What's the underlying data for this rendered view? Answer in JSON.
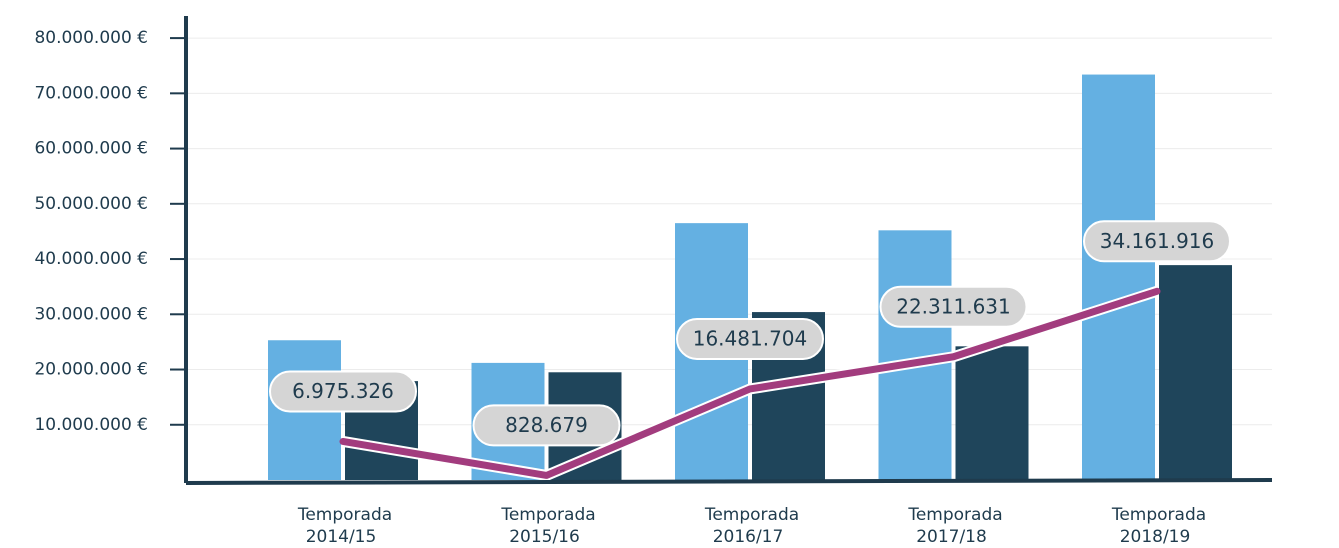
{
  "chart_data": {
    "type": "bar",
    "categories": [
      [
        "Temporada",
        "2014/15"
      ],
      [
        "Temporada",
        "2015/16"
      ],
      [
        "Temporada",
        "2016/17"
      ],
      [
        "Temporada",
        "2017/18"
      ],
      [
        "Temporada",
        "2018/19"
      ]
    ],
    "series": [
      {
        "color": "#64b0e2",
        "values": [
          25300000,
          21200000,
          46500000,
          45200000,
          73400000
        ]
      },
      {
        "color": "#1f455b",
        "values": [
          17900000,
          19500000,
          30400000,
          24200000,
          38900000
        ]
      },
      {
        "type": "line",
        "color": "#a23c7e",
        "values": [
          6975326,
          828679,
          16481704,
          22311631,
          34161916
        ],
        "value_labels": [
          "6.975.326",
          "828.679",
          "16.481.704",
          "22.311.631",
          "34.161.916"
        ]
      }
    ],
    "ylim": [
      0,
      84000000
    ],
    "yticks": [
      {
        "value": 10000000,
        "label": "10.000.000 €"
      },
      {
        "value": 20000000,
        "label": "20.000.000 €"
      },
      {
        "value": 30000000,
        "label": "30.000.000 €"
      },
      {
        "value": 40000000,
        "label": "40.000.000 €"
      },
      {
        "value": 50000000,
        "label": "50.000.000 €"
      },
      {
        "value": 60000000,
        "label": "60.000.000 €"
      },
      {
        "value": 70000000,
        "label": "70.000.000 €"
      },
      {
        "value": 80000000,
        "label": "80.000.000 €"
      }
    ],
    "grid": true
  }
}
